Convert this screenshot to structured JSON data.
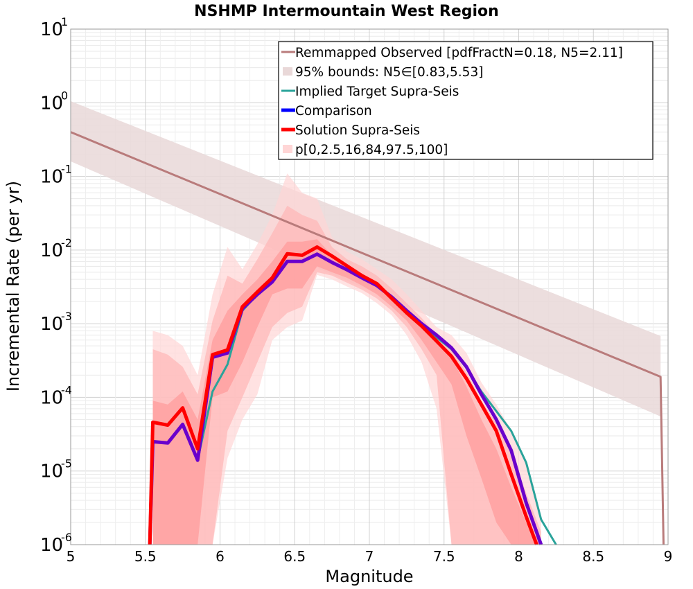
{
  "chart_data": {
    "type": "line",
    "title": "NSHMP Intermountain West Region",
    "xlabel": "Magnitude",
    "ylabel": "Incremental Rate (per yr)",
    "xlim": [
      5,
      9
    ],
    "ylim": [
      1e-06,
      10
    ],
    "y_scale": "log",
    "grid": true,
    "legend_position": "top-right",
    "x_ticks": [
      "5",
      "5.5",
      "6",
      "6.5",
      "7",
      "7.5",
      "8",
      "8.5",
      "9"
    ],
    "y_ticks": [
      {
        "base": "10",
        "exp": "-6"
      },
      {
        "base": "10",
        "exp": "-5"
      },
      {
        "base": "10",
        "exp": "-4"
      },
      {
        "base": "10",
        "exp": "-3"
      },
      {
        "base": "10",
        "exp": "-2"
      },
      {
        "base": "10",
        "exp": "-1"
      },
      {
        "base": "10",
        "exp": "0"
      },
      {
        "base": "10",
        "exp": "1"
      }
    ],
    "legend": [
      {
        "label": "Remmapped Observed [pdfFractN=0.18, N5=2.11]",
        "style": "line",
        "color": "#b97b7b"
      },
      {
        "label": "95% bounds: N5∈[0.83,5.53]",
        "style": "band",
        "color": "#e9d8d8"
      },
      {
        "label": "Implied Target Supra-Seis",
        "style": "line",
        "color": "#2aa39a"
      },
      {
        "label": "Comparison",
        "style": "thick",
        "color": "#0000ff"
      },
      {
        "label": "Solution Supra-Seis",
        "style": "thick",
        "color": "#ff0000"
      },
      {
        "label": "p[0,2.5,16,84,97.5,100]",
        "style": "band",
        "color": "#ffd6d6"
      }
    ],
    "series": [
      {
        "name": "Remmapped Observed [pdfFractN=0.18, N5=2.11]",
        "kind": "line",
        "color": "#b97b7b",
        "points": [
          [
            5.0,
            0.4
          ],
          [
            8.95,
            0.00019
          ],
          [
            8.97,
            1e-06
          ]
        ]
      },
      {
        "name": "95% bounds: N5∈[0.83,5.53]",
        "kind": "band",
        "color": "#e9d8d8",
        "x": [
          5.0,
          8.95
        ],
        "lower": [
          0.16,
          5.5e-05
        ],
        "upper": [
          1.05,
          0.00068
        ]
      },
      {
        "name": "p[0,2.5,16,84,97.5,100]",
        "kind": "band",
        "color": "#ffd6d6",
        "x": [
          5.55,
          5.65,
          5.75,
          5.85,
          5.95,
          6.05,
          6.15,
          6.25,
          6.35,
          6.45,
          6.55,
          6.65,
          6.75,
          6.85,
          6.95,
          7.05,
          7.15,
          7.25,
          7.35,
          7.45,
          7.55,
          7.65,
          7.75,
          7.85,
          7.95,
          8.05,
          8.15
        ],
        "lower": [
          1e-06,
          1e-06,
          1e-06,
          1e-06,
          1e-06,
          1.5e-05,
          5e-05,
          0.00011,
          0.0006,
          0.0009,
          0.0011,
          0.0046,
          0.004,
          0.0032,
          0.0026,
          0.0019,
          0.0013,
          0.0007,
          0.0003,
          7e-05,
          1e-06,
          1e-06,
          1e-06,
          1e-06,
          1e-06,
          1e-06,
          1e-06
        ],
        "upper": [
          0.0008,
          0.0007,
          0.0005,
          0.0002,
          0.0025,
          0.011,
          0.0055,
          0.012,
          0.03,
          0.11,
          0.06,
          0.05,
          0.015,
          0.0095,
          0.0075,
          0.0055,
          0.004,
          0.0025,
          0.0015,
          0.0009,
          0.0007,
          0.0004,
          0.00016,
          8e-05,
          3.5e-05,
          1.2e-05,
          2.5e-06
        ]
      },
      {
        "name": "p[0,2.5,16,84,97.5,100]",
        "kind": "band",
        "color": "#ffb6b6",
        "x": [
          5.55,
          5.65,
          5.75,
          5.85,
          5.95,
          6.05,
          6.15,
          6.25,
          6.35,
          6.45,
          6.55,
          6.65,
          6.75,
          6.85,
          6.95,
          7.05,
          7.15,
          7.25,
          7.35,
          7.45,
          7.55,
          7.65,
          7.75,
          7.85,
          7.95,
          8.05,
          8.15
        ],
        "lower": [
          1e-06,
          1e-06,
          1e-06,
          1e-06,
          1e-06,
          3.5e-05,
          0.0001,
          0.0003,
          0.0009,
          0.0014,
          0.0017,
          0.005,
          0.0045,
          0.0036,
          0.0029,
          0.0022,
          0.0015,
          0.0009,
          0.00045,
          0.0002,
          1e-06,
          1e-06,
          1e-06,
          1e-06,
          1e-06,
          1e-06,
          1e-06
        ],
        "upper": [
          0.00045,
          0.00038,
          0.00026,
          0.00011,
          0.0011,
          0.0045,
          0.0035,
          0.0075,
          0.017,
          0.04,
          0.03,
          0.025,
          0.011,
          0.0075,
          0.006,
          0.0045,
          0.003,
          0.0019,
          0.0012,
          0.0007,
          0.00045,
          0.00022,
          9e-05,
          4.5e-05,
          1.8e-05,
          5e-06,
          1.5e-06
        ]
      },
      {
        "name": "p[0,2.5,16,84,97.5,100]",
        "kind": "band",
        "color": "#ff9a9a",
        "x": [
          5.55,
          5.65,
          5.75,
          5.85,
          5.95,
          6.05,
          6.15,
          6.25,
          6.35,
          6.45,
          6.55,
          6.65,
          6.75,
          6.85,
          6.95,
          7.05,
          7.15,
          7.25,
          7.35,
          7.45,
          7.55,
          7.65,
          7.75,
          7.85,
          7.95,
          8.05,
          8.15
        ],
        "lower": [
          1e-06,
          1e-06,
          1e-06,
          1e-06,
          0.0001,
          0.00012,
          0.0003,
          0.0009,
          0.0025,
          0.003,
          0.003,
          0.006,
          0.005,
          0.0042,
          0.0033,
          0.0025,
          0.0017,
          0.0011,
          0.0006,
          0.0003,
          0.00015,
          3e-05,
          8e-06,
          2e-06,
          1e-06,
          1e-06,
          1e-06
        ],
        "upper": [
          9e-05,
          8e-05,
          0.00012,
          5e-05,
          0.0006,
          0.0015,
          0.0025,
          0.004,
          0.007,
          0.013,
          0.013,
          0.014,
          0.0085,
          0.006,
          0.0048,
          0.0036,
          0.0024,
          0.0015,
          0.001,
          0.0006,
          0.00035,
          0.00014,
          5e-05,
          2e-05,
          6e-06,
          2e-06,
          1e-06
        ]
      },
      {
        "name": "Implied Target Supra-Seis",
        "kind": "line",
        "color": "#2aa39a",
        "points": [
          [
            5.85,
            1.4e-05
          ],
          [
            5.95,
            0.00012
          ],
          [
            6.05,
            0.00028
          ],
          [
            6.15,
            0.0015
          ],
          [
            6.25,
            0.0025
          ],
          [
            6.35,
            0.0037
          ],
          [
            6.45,
            0.007
          ],
          [
            6.55,
            0.007
          ],
          [
            6.65,
            0.0088
          ],
          [
            6.75,
            0.0068
          ],
          [
            6.85,
            0.0054
          ],
          [
            6.95,
            0.0042
          ],
          [
            7.05,
            0.0033
          ],
          [
            7.15,
            0.0023
          ],
          [
            7.25,
            0.0015
          ],
          [
            7.35,
            0.00096
          ],
          [
            7.45,
            0.00065
          ],
          [
            7.55,
            0.00045
          ],
          [
            7.65,
            0.00025
          ],
          [
            7.75,
            0.00012
          ],
          [
            7.85,
            6.5e-05
          ],
          [
            7.95,
            3.5e-05
          ],
          [
            8.05,
            1.3e-05
          ],
          [
            8.15,
            2.2e-06
          ],
          [
            8.25,
            1e-06
          ]
        ]
      },
      {
        "name": "Comparison",
        "kind": "thick",
        "color": "#6a00cc",
        "points": [
          [
            5.53,
            1e-06
          ],
          [
            5.55,
            2.5e-05
          ],
          [
            5.65,
            2.4e-05
          ],
          [
            5.75,
            4.3e-05
          ],
          [
            5.85,
            1.4e-05
          ],
          [
            5.95,
            0.00035
          ],
          [
            6.05,
            0.0004
          ],
          [
            6.15,
            0.0016
          ],
          [
            6.25,
            0.0025
          ],
          [
            6.35,
            0.0037
          ],
          [
            6.45,
            0.007
          ],
          [
            6.55,
            0.007
          ],
          [
            6.65,
            0.0088
          ],
          [
            6.75,
            0.0068
          ],
          [
            6.85,
            0.0054
          ],
          [
            6.95,
            0.0042
          ],
          [
            7.05,
            0.0033
          ],
          [
            7.15,
            0.0023
          ],
          [
            7.25,
            0.0015
          ],
          [
            7.35,
            0.001
          ],
          [
            7.45,
            0.0007
          ],
          [
            7.55,
            0.00047
          ],
          [
            7.65,
            0.00026
          ],
          [
            7.75,
            0.00011
          ],
          [
            7.85,
            5e-05
          ],
          [
            7.95,
            1.9e-05
          ],
          [
            8.05,
            3.7e-06
          ],
          [
            8.15,
            1e-06
          ]
        ]
      },
      {
        "name": "Solution Supra-Seis",
        "kind": "thick",
        "color": "#ff0000",
        "points": [
          [
            5.53,
            1e-06
          ],
          [
            5.55,
            4.6e-05
          ],
          [
            5.65,
            4.2e-05
          ],
          [
            5.75,
            7.2e-05
          ],
          [
            5.85,
            2e-05
          ],
          [
            5.95,
            0.00038
          ],
          [
            6.05,
            0.00044
          ],
          [
            6.15,
            0.0017
          ],
          [
            6.25,
            0.0027
          ],
          [
            6.35,
            0.0042
          ],
          [
            6.45,
            0.0089
          ],
          [
            6.55,
            0.0085
          ],
          [
            6.65,
            0.011
          ],
          [
            6.75,
            0.0083
          ],
          [
            6.85,
            0.0061
          ],
          [
            6.95,
            0.0045
          ],
          [
            7.05,
            0.0035
          ],
          [
            7.15,
            0.0022
          ],
          [
            7.25,
            0.0014
          ],
          [
            7.35,
            0.00093
          ],
          [
            7.45,
            0.00058
          ],
          [
            7.55,
            0.00036
          ],
          [
            7.65,
            0.00018
          ],
          [
            7.75,
            8e-05
          ],
          [
            7.85,
            3.5e-05
          ],
          [
            7.95,
            9e-06
          ],
          [
            8.05,
            2.4e-06
          ],
          [
            8.12,
            1e-06
          ]
        ]
      }
    ]
  }
}
